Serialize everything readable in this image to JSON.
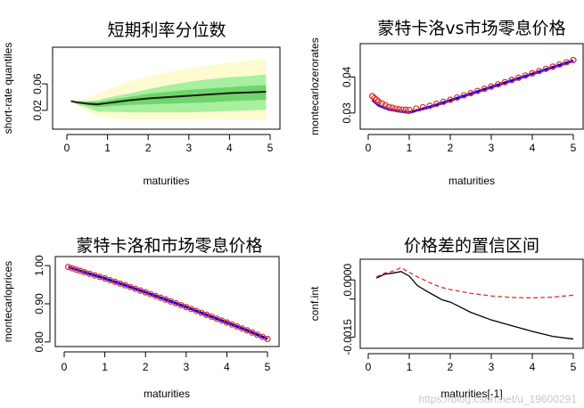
{
  "watermark": "https://blog.csdn.net/u_19600291",
  "chart_data": [
    {
      "type": "area",
      "title": "短期利率分位数",
      "xlabel": "maturities",
      "ylabel": "short-rate quantiles",
      "xlim": [
        0,
        5
      ],
      "ylim": [
        0.005,
        0.11
      ],
      "xticks": [
        0,
        1,
        2,
        3,
        4,
        5
      ],
      "yticks": [
        0.02,
        0.06
      ],
      "colors": {
        "outer": "#fdfbcf",
        "mid": "#a6f0a0",
        "inner": "#6fd56a",
        "median": "#1a1a1a"
      },
      "x": [
        0.1,
        0.25,
        0.5,
        0.75,
        1.0,
        1.5,
        2.0,
        2.5,
        3.0,
        3.5,
        4.0,
        4.5,
        4.9
      ],
      "series": [
        {
          "values": [
            0.034,
            0.035,
            0.038,
            0.045,
            0.052,
            0.063,
            0.071,
            0.078,
            0.083,
            0.088,
            0.092,
            0.095,
            0.098
          ]
        },
        {
          "values": [
            0.034,
            0.034,
            0.034,
            0.035,
            0.039,
            0.045,
            0.052,
            0.058,
            0.063,
            0.067,
            0.07,
            0.072,
            0.074
          ]
        },
        {
          "values": [
            0.034,
            0.034,
            0.033,
            0.033,
            0.035,
            0.04,
            0.045,
            0.048,
            0.051,
            0.053,
            0.055,
            0.057,
            0.058
          ]
        },
        {
          "values": [
            0.034,
            0.032,
            0.03,
            0.029,
            0.031,
            0.035,
            0.038,
            0.04,
            0.042,
            0.044,
            0.046,
            0.047,
            0.048
          ]
        },
        {
          "values": [
            0.034,
            0.031,
            0.028,
            0.025,
            0.026,
            0.028,
            0.029,
            0.03,
            0.031,
            0.032,
            0.034,
            0.035,
            0.036
          ]
        },
        {
          "values": [
            0.034,
            0.029,
            0.024,
            0.018,
            0.018,
            0.017,
            0.017,
            0.017,
            0.017,
            0.018,
            0.019,
            0.02,
            0.021
          ]
        },
        {
          "values": [
            0.034,
            0.027,
            0.019,
            0.012,
            0.009,
            0.006,
            0.006,
            0.006,
            0.006,
            0.006,
            0.006,
            0.006,
            0.006
          ]
        }
      ]
    },
    {
      "type": "scatter",
      "title": "蒙特卡洛vs市场零息价格",
      "xlabel": "maturities",
      "ylabel": "montecarlozerorates",
      "xlim": [
        0,
        5
      ],
      "ylim": [
        0.0325,
        0.0445
      ],
      "xticks": [
        0,
        1,
        2,
        3,
        4,
        5
      ],
      "yticks": [
        0.034,
        0.04
      ],
      "series": [
        {
          "color": "#0000ff",
          "x": [
            0.1,
            0.25,
            0.5,
            0.75,
            1.0,
            1.5,
            2.0,
            2.5,
            3.0,
            3.5,
            4.0,
            4.5,
            5.0
          ],
          "values": [
            0.0362,
            0.0353,
            0.0346,
            0.0343,
            0.0341,
            0.035,
            0.0361,
            0.0372,
            0.0383,
            0.0394,
            0.0405,
            0.0416,
            0.0427
          ]
        },
        {
          "color": "#e0302a",
          "x": [
            0.1,
            0.25,
            0.5,
            0.75,
            1.0,
            1.5,
            2.0,
            2.5,
            3.0,
            3.5,
            4.0,
            4.5,
            5.0
          ],
          "values": [
            0.0368,
            0.0359,
            0.035,
            0.0346,
            0.0345,
            0.0352,
            0.0362,
            0.0373,
            0.0384,
            0.0395,
            0.0406,
            0.0417,
            0.0428
          ]
        }
      ]
    },
    {
      "type": "scatter",
      "title": "蒙特卡洛和市场零息价格",
      "xlabel": "",
      "ylabel": "montecarloprices",
      "xlim": [
        0,
        5
      ],
      "ylim": [
        0.795,
        1.005
      ],
      "xticks": [
        0,
        1,
        2,
        3,
        4,
        5
      ],
      "yticks": [
        0.8,
        0.9,
        1.0
      ],
      "series": [
        {
          "color": "#0000ff",
          "x": [
            0.1,
            0.5,
            1.0,
            1.5,
            2.0,
            2.5,
            3.0,
            3.5,
            4.0,
            4.5,
            5.0
          ],
          "values": [
            0.9963,
            0.9826,
            0.9663,
            0.9485,
            0.93,
            0.9109,
            0.8915,
            0.8711,
            0.8509,
            0.8303,
            0.8079
          ]
        },
        {
          "color": "#e0302a",
          "x": [
            0.1,
            0.5,
            1.0,
            1.5,
            2.0,
            2.5,
            3.0,
            3.5,
            4.0,
            4.5,
            5.0
          ],
          "values": [
            0.9963,
            0.9826,
            0.9663,
            0.9485,
            0.93,
            0.9109,
            0.8915,
            0.8711,
            0.8509,
            0.8303,
            0.8079
          ]
        }
      ]
    },
    {
      "type": "line",
      "title": "价格差的置信区间",
      "xlabel": "maturities[-1]",
      "ylabel": "conf.int",
      "xlim": [
        0,
        5
      ],
      "ylim": [
        -0.0017,
        0.00045
      ],
      "xticks": [
        0,
        1,
        2,
        3,
        4,
        5
      ],
      "yticks": [
        0.0,
        -0.0005,
        -0.0015
      ],
      "ytick_labels": [
        "0.0000",
        "",
        "-0.0015"
      ],
      "series": [
        {
          "color": "#000000",
          "dash": false,
          "x": [
            0.2,
            0.4,
            0.6,
            0.8,
            1.0,
            1.2,
            1.4,
            1.6,
            1.8,
            2.0,
            2.5,
            3.0,
            3.5,
            4.0,
            4.5,
            5.0
          ],
          "values": [
            5e-05,
            0.00015,
            0.00018,
            0.00022,
            0.0001,
            -0.00015,
            -0.00028,
            -0.0004,
            -0.00052,
            -0.00058,
            -0.00085,
            -0.00105,
            -0.0012,
            -0.00135,
            -0.00148,
            -0.00155
          ]
        },
        {
          "color": "#e0302a",
          "dash": true,
          "x": [
            0.2,
            0.4,
            0.6,
            0.8,
            1.0,
            1.2,
            1.4,
            1.6,
            1.8,
            2.0,
            2.5,
            3.0,
            3.5,
            4.0,
            4.5,
            5.0
          ],
          "values": [
            8e-05,
            0.00018,
            0.00023,
            0.00032,
            0.0002,
            8e-05,
            -2e-05,
            -0.00012,
            -0.0002,
            -0.00025,
            -0.00035,
            -0.00042,
            -0.00046,
            -0.00047,
            -0.00045,
            -0.0004
          ]
        }
      ]
    }
  ]
}
